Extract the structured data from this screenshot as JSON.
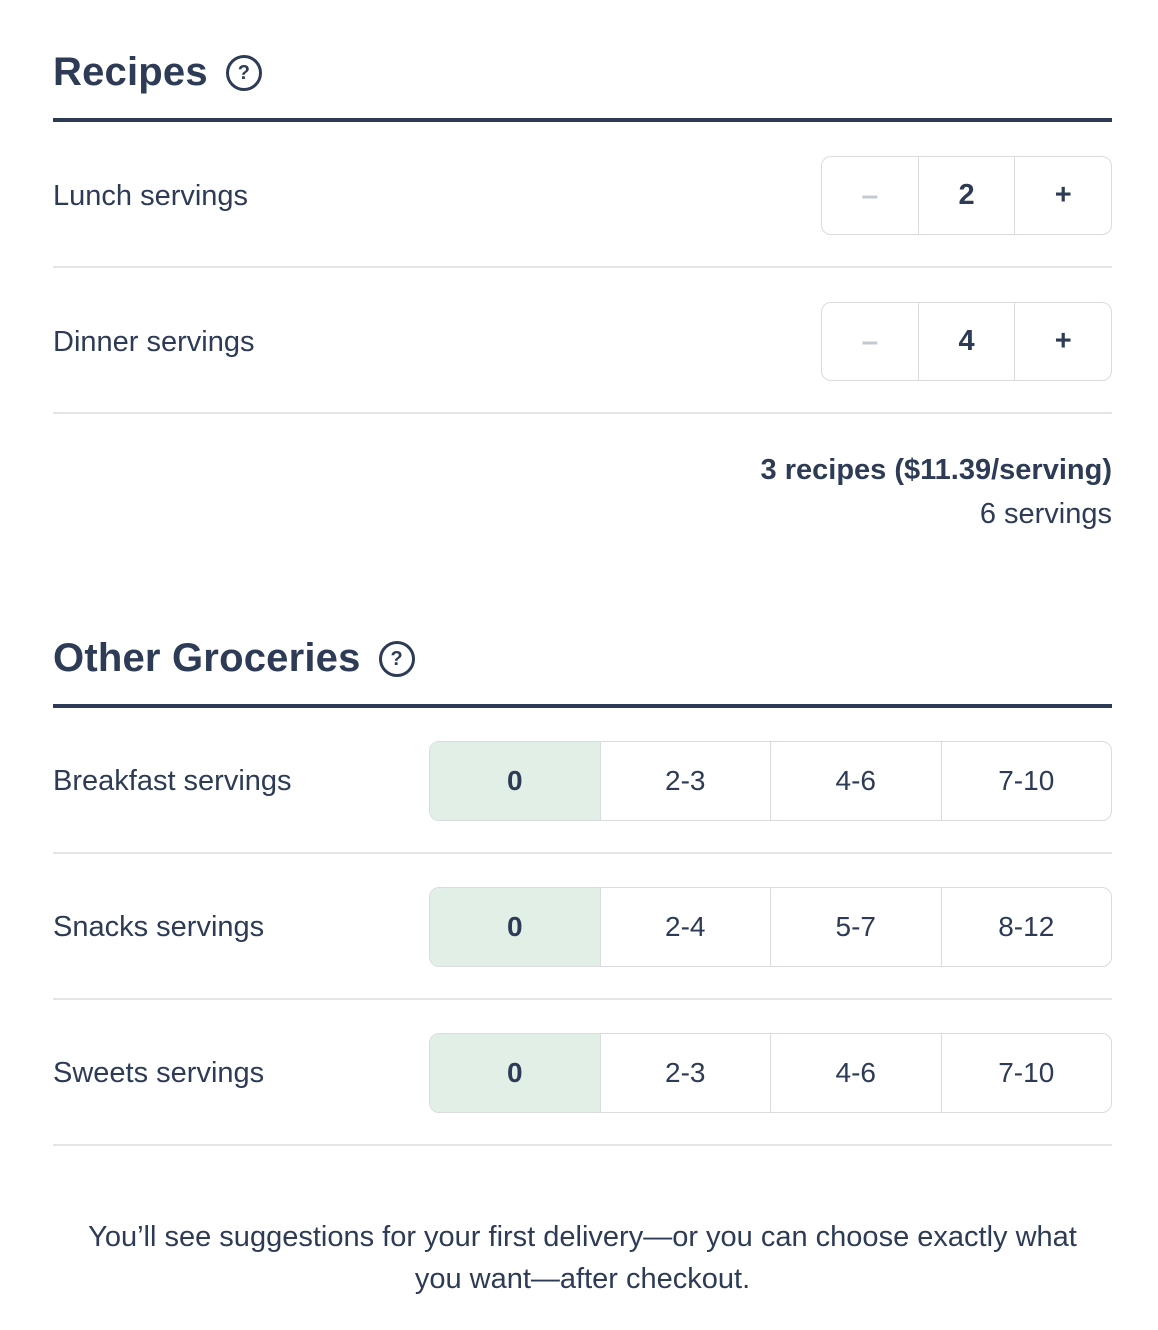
{
  "theme": {
    "navy": "#2d3b56",
    "mint_selected": "#e1efe7",
    "border_light": "#d8dce0",
    "divider_light": "#e3e6e6",
    "minus_disabled": "#c3c9d1"
  },
  "recipes_section": {
    "title": "Recipes",
    "rows": [
      {
        "label": "Lunch servings",
        "minus": "–",
        "value": "2",
        "plus": "+"
      },
      {
        "label": "Dinner servings",
        "minus": "–",
        "value": "4",
        "plus": "+"
      }
    ],
    "summary": {
      "bold": "3 recipes ($11.39/serving)",
      "sub": "6 servings"
    }
  },
  "groceries_section": {
    "title": "Other Groceries",
    "rows": [
      {
        "label": "Breakfast servings",
        "options": [
          "0",
          "2-3",
          "4-6",
          "7-10"
        ],
        "selected_index": 0
      },
      {
        "label": "Snacks servings",
        "options": [
          "0",
          "2-4",
          "5-7",
          "8-12"
        ],
        "selected_index": 0
      },
      {
        "label": "Sweets servings",
        "options": [
          "0",
          "2-3",
          "4-6",
          "7-10"
        ],
        "selected_index": 0
      }
    ]
  },
  "footer": {
    "text": "You’ll see suggestions for your first delivery—or you can choose exactly what you want—after checkout."
  },
  "icons": {
    "help": "?"
  }
}
